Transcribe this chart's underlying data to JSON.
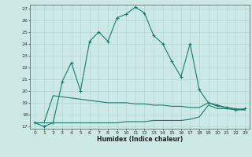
{
  "title": "",
  "xlabel": "Humidex (Indice chaleur)",
  "xlim": [
    -0.5,
    23.5
  ],
  "ylim": [
    16.8,
    27.3
  ],
  "yticks": [
    17,
    18,
    19,
    20,
    21,
    22,
    23,
    24,
    25,
    26,
    27
  ],
  "xticks": [
    0,
    1,
    2,
    3,
    4,
    5,
    6,
    7,
    8,
    9,
    10,
    11,
    12,
    13,
    14,
    15,
    16,
    17,
    18,
    19,
    20,
    21,
    22,
    23
  ],
  "background_color": "#cce9e5",
  "grid_color": "#b0d8d3",
  "line_color": "#1a7a6e",
  "line1_x": [
    0,
    1,
    2,
    3,
    4,
    5,
    6,
    7,
    8,
    9,
    10,
    11,
    12,
    13,
    14,
    15,
    16,
    17,
    18,
    19,
    20,
    21,
    22,
    23
  ],
  "line1_y": [
    17.3,
    17.0,
    17.3,
    20.8,
    22.4,
    20.0,
    24.2,
    25.0,
    24.2,
    26.2,
    26.5,
    27.1,
    26.6,
    24.7,
    24.0,
    22.5,
    21.2,
    24.0,
    20.1,
    19.0,
    18.8,
    18.6,
    18.4,
    18.5
  ],
  "line2_x": [
    0,
    1,
    2,
    3,
    4,
    5,
    6,
    7,
    8,
    9,
    10,
    11,
    12,
    13,
    14,
    15,
    16,
    17,
    18,
    19,
    20,
    21,
    22,
    23
  ],
  "line2_y": [
    17.3,
    17.3,
    17.3,
    17.3,
    17.3,
    17.3,
    17.3,
    17.3,
    17.3,
    17.3,
    17.4,
    17.4,
    17.4,
    17.5,
    17.5,
    17.5,
    17.5,
    17.6,
    17.8,
    18.8,
    18.5,
    18.5,
    18.4,
    18.4
  ],
  "line3_x": [
    0,
    1,
    2,
    3,
    4,
    5,
    6,
    7,
    8,
    9,
    10,
    11,
    12,
    13,
    14,
    15,
    16,
    17,
    18,
    19,
    20,
    21,
    22,
    23
  ],
  "line3_y": [
    17.3,
    17.3,
    19.6,
    19.5,
    19.4,
    19.3,
    19.2,
    19.1,
    19.0,
    19.0,
    19.0,
    18.9,
    18.9,
    18.8,
    18.8,
    18.7,
    18.7,
    18.6,
    18.6,
    19.0,
    18.7,
    18.6,
    18.5,
    18.4
  ]
}
